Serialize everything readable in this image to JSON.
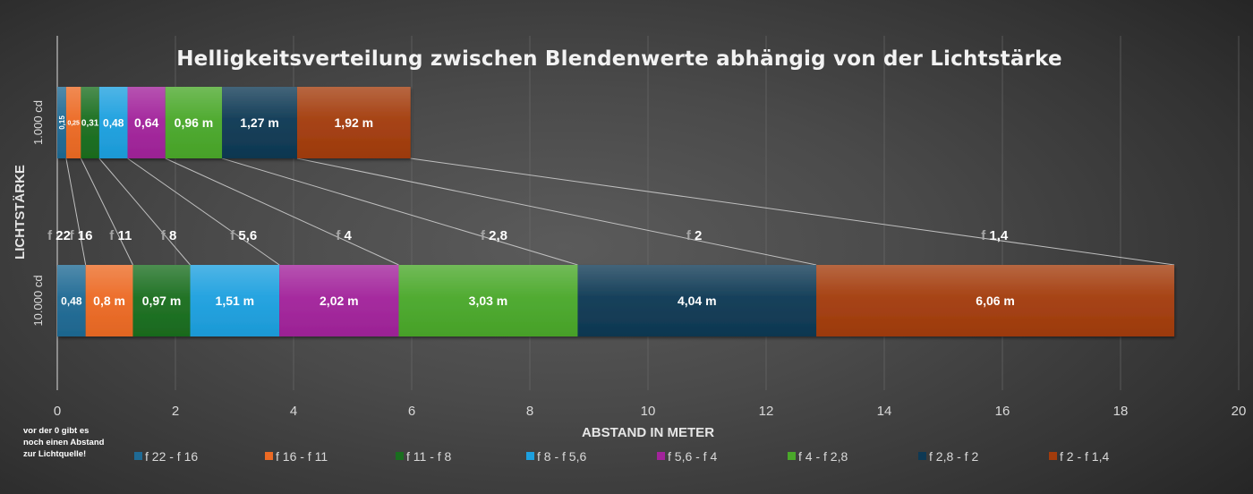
{
  "chart_data": {
    "type": "bar",
    "orientation": "horizontal-stacked",
    "title": "Helligkeitsverteilung zwischen Blendenwerte abhängig von der Lichtstärke",
    "xlabel": "ABSTAND IN METER",
    "ylabel": "LICHTSTÄRKE",
    "xlim": [
      0,
      20
    ],
    "xticks": [
      "0",
      "2",
      "4",
      "6",
      "8",
      "10",
      "12",
      "14",
      "16",
      "18",
      "20"
    ],
    "grid": true,
    "legend_position": "bottom",
    "categories": [
      "1.000 cd",
      "10.000 cd"
    ],
    "series": [
      {
        "name": "f 22 - f 16",
        "color": "#1f6a94",
        "values": [
          0.15,
          0.48
        ],
        "labels": [
          "0,15",
          "0,48"
        ]
      },
      {
        "name": "f 16 - f 11",
        "color": "#ec6a24",
        "values": [
          0.25,
          0.8
        ],
        "labels": [
          "0,25",
          "0,8 m"
        ]
      },
      {
        "name": "f 11 - f 8",
        "color": "#1a6e1f",
        "values": [
          0.31,
          0.97
        ],
        "labels": [
          "0,31",
          "0,97 m"
        ]
      },
      {
        "name": "f 8 - f 5,6",
        "color": "#1da0df",
        "values": [
          0.48,
          1.51
        ],
        "labels": [
          "0,48",
          "1,51 m"
        ]
      },
      {
        "name": "f 5,6 - f 4",
        "color": "#a2239b",
        "values": [
          0.64,
          2.02
        ],
        "labels": [
          "0,64",
          "2,02 m"
        ]
      },
      {
        "name": "f 4 - f 2,8",
        "color": "#4aa82a",
        "values": [
          0.96,
          3.03
        ],
        "labels": [
          "0,96 m",
          "3,03 m"
        ]
      },
      {
        "name": "f 2,8 - f 2",
        "color": "#0e3954",
        "values": [
          1.27,
          4.04
        ],
        "labels": [
          "1,27 m",
          "4,04 m"
        ]
      },
      {
        "name": "f 2 - f 1,4",
        "color": "#a33c0c",
        "values": [
          1.92,
          6.06
        ],
        "labels": [
          "1,92 m",
          "6,06 m"
        ]
      }
    ],
    "annotations": {
      "f_stops": [
        {
          "prefix": "f",
          "value": "22"
        },
        {
          "prefix": "f",
          "value": "16"
        },
        {
          "prefix": "f",
          "value": "11"
        },
        {
          "prefix": "f",
          "value": "8"
        },
        {
          "prefix": "f",
          "value": "5,6"
        },
        {
          "prefix": "f",
          "value": "4"
        },
        {
          "prefix": "f",
          "value": "2,8"
        },
        {
          "prefix": "f",
          "value": "2"
        },
        {
          "prefix": "f",
          "value": "1,4"
        }
      ],
      "note": [
        "vor der 0 gibt es",
        "noch einen Abstand",
        "zur Lichtquelle!"
      ]
    }
  }
}
